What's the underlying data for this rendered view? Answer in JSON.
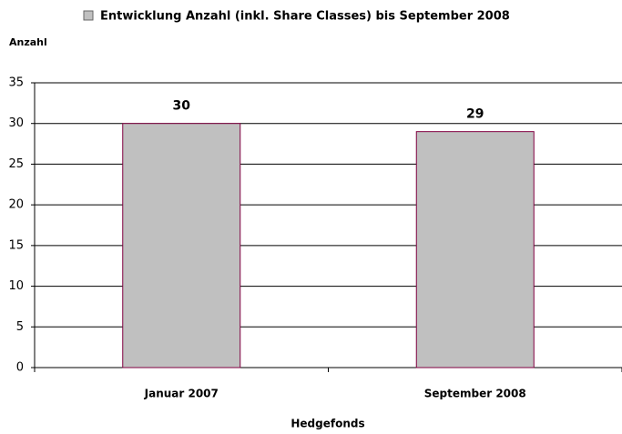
{
  "chart_data": {
    "type": "bar",
    "categories": [
      "Januar 2007",
      "September 2008"
    ],
    "series": [
      {
        "name": "Entwicklung Anzahl (inkl. Share Classes) bis September 2008",
        "color": "#c0c0c0",
        "edge_color": "#800040",
        "values": [
          30,
          29
        ]
      }
    ],
    "y_label": "Anzahl",
    "x_label": "Hedgefonds",
    "ylim": [
      0,
      35
    ],
    "yticks": [
      0,
      5,
      10,
      15,
      20,
      25,
      30,
      35
    ],
    "grid": true,
    "legend": "top"
  }
}
